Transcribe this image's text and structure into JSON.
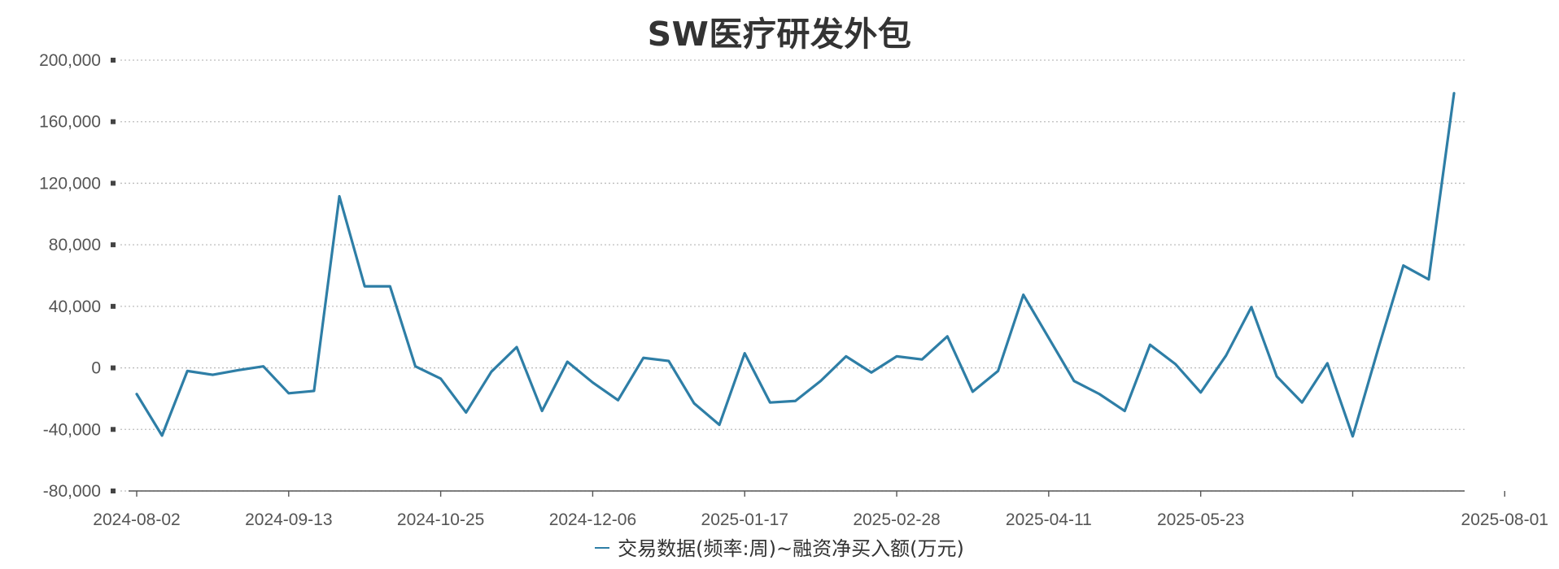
{
  "chart_data": {
    "type": "line",
    "title": "SW医疗研发外包",
    "xlabel": "",
    "ylabel": "",
    "x_tick_labels": [
      "2024-08-02",
      "2024-09-13",
      "2024-10-25",
      "2024-12-06",
      "2025-01-17",
      "2025-02-28",
      "2025-04-11",
      "2025-05-23",
      "",
      "2025-08-01"
    ],
    "y_tick_labels": [
      "200,000",
      "160,000",
      "120,000",
      "80,000",
      "40,000",
      "0",
      "-40,000",
      "-80,000"
    ],
    "ylim": [
      -80000,
      200000
    ],
    "grid": true,
    "legend_position": "bottom",
    "series": [
      {
        "name": "交易数据(频率:周)~融资净买入额(万元)",
        "color": "#2e7ea6",
        "x": [
          "2024-08-02",
          "2024-08-09",
          "2024-08-16",
          "2024-08-23",
          "2024-08-30",
          "2024-09-06",
          "2024-09-13",
          "2024-09-20",
          "2024-09-27",
          "2024-10-04",
          "2024-10-11",
          "2024-10-18",
          "2024-10-25",
          "2024-11-01",
          "2024-11-08",
          "2024-11-15",
          "2024-11-22",
          "2024-11-29",
          "2024-12-06",
          "2024-12-13",
          "2024-12-20",
          "2024-12-27",
          "2025-01-03",
          "2025-01-10",
          "2025-01-17",
          "2025-01-24",
          "2025-01-31",
          "2025-02-07",
          "2025-02-14",
          "2025-02-21",
          "2025-02-28",
          "2025-03-07",
          "2025-03-14",
          "2025-03-21",
          "2025-03-28",
          "2025-04-04",
          "2025-04-11",
          "2025-04-18",
          "2025-04-25",
          "2025-05-02",
          "2025-05-09",
          "2025-05-16",
          "2025-05-23",
          "2025-05-30",
          "2025-06-06",
          "2025-06-13",
          "2025-06-20",
          "2025-06-27",
          "2025-07-04",
          "2025-07-11",
          "2025-07-18",
          "2025-07-25",
          "2025-08-01"
        ],
        "values": [
          -17000,
          -44000,
          -2000,
          -4500,
          -1500,
          1000,
          -16500,
          -15000,
          111500,
          53000,
          53000,
          1000,
          -7000,
          -29000,
          -2500,
          13500,
          -28000,
          4000,
          -9500,
          -21000,
          6500,
          4500,
          -23000,
          -37000,
          9500,
          -22500,
          -21500,
          -8500,
          7500,
          -3000,
          7500,
          5500,
          20500,
          -15500,
          -2000,
          47500,
          19500,
          -8500,
          -17000,
          -28000,
          15000,
          2500,
          -16000,
          8000,
          39500,
          -5500,
          -22500,
          3000,
          -44500,
          12000,
          66500,
          57500,
          178500
        ]
      }
    ]
  }
}
